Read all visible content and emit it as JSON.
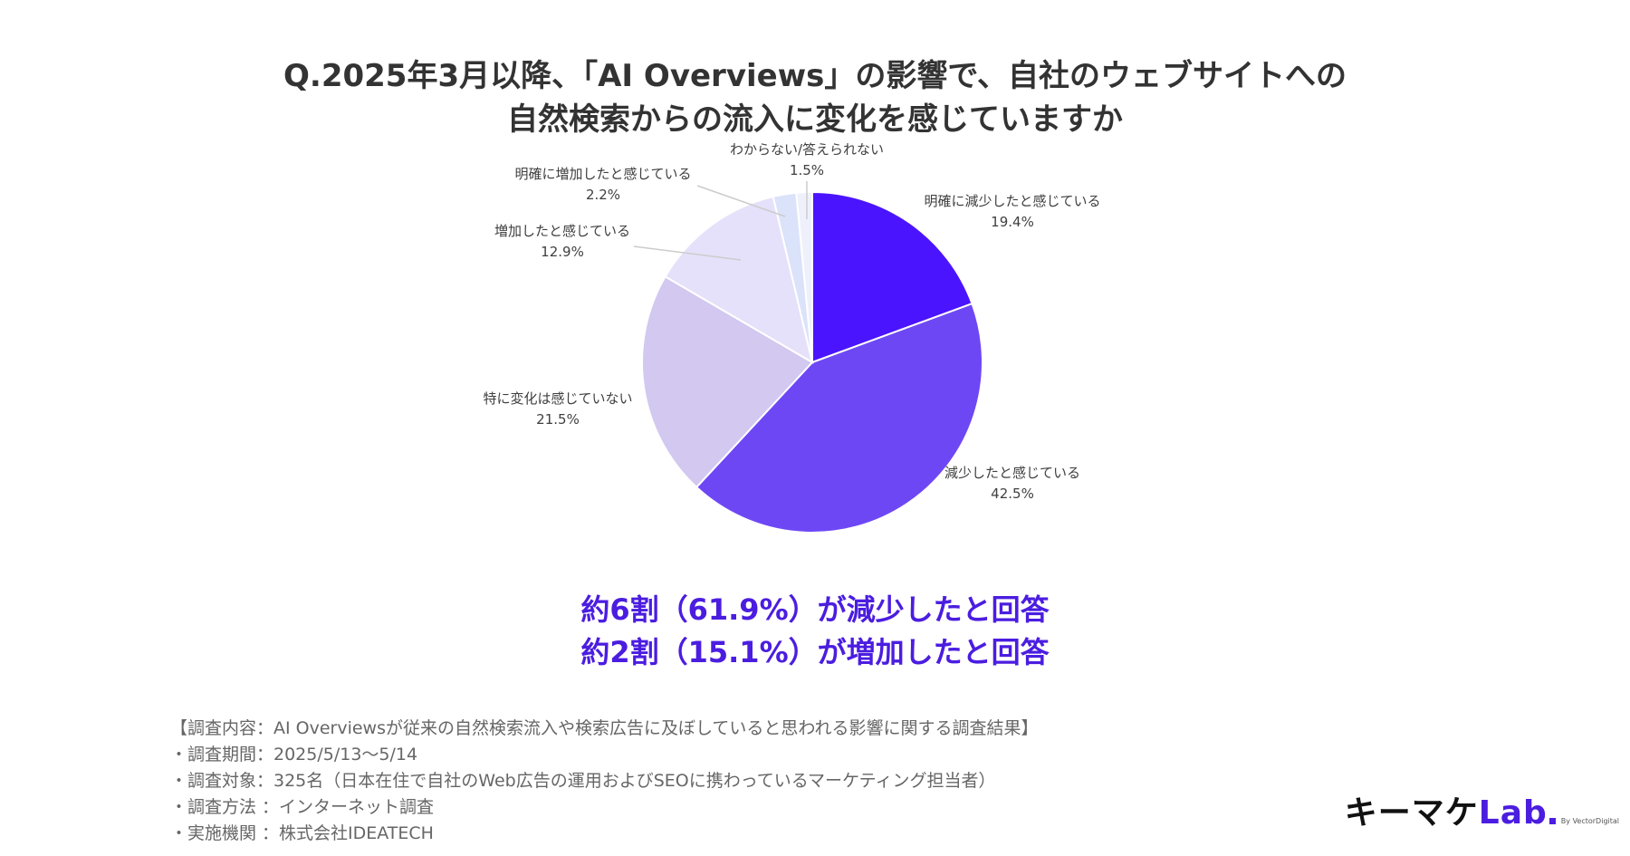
{
  "title": {
    "line1": "Q.2025年3月以降、「AI Overviews」の影響で、自社のウェブサイトへの",
    "line2": "自然検索からの流入に変化を感じていますか"
  },
  "chart_data": {
    "type": "pie",
    "slices": [
      {
        "label": "明確に減少したと感じている",
        "value": 19.4,
        "value_label": "19.4%",
        "color": "#4b14ff"
      },
      {
        "label": "減少したと感じている",
        "value": 42.5,
        "value_label": "42.5%",
        "color": "#6e47f5"
      },
      {
        "label": "特に変化は感じていない",
        "value": 21.5,
        "value_label": "21.5%",
        "color": "#d2c8f0"
      },
      {
        "label": "増加したと感じている",
        "value": 12.9,
        "value_label": "12.9%",
        "color": "#e6e1fa"
      },
      {
        "label": "明確に増加したと感じている",
        "value": 2.2,
        "value_label": "2.2%",
        "color": "#dbe3fa"
      },
      {
        "label": "わからない/答えられない",
        "value": 1.5,
        "value_label": "1.5%",
        "color": "#eef1fb"
      }
    ],
    "start_angle": "12 o'clock",
    "direction": "clockwise",
    "legend": "none (labels outside slices)"
  },
  "summary": {
    "line1": "約6割（61.9%）が減少したと回答",
    "line2": "約2割（15.1%）が増加したと回答"
  },
  "footnotes": [
    "【調査内容：AI Overviewsが従来の自然検索流入や検索広告に及ぼしていると思われる影響に関する調査結果】",
    "・調査期間：2025/5/13〜5/14",
    "・調査対象：325名（日本在住で自社のWeb広告の運用およびSEOに携わっているマーケティング担当者）",
    "・調査方法 ：インターネット調査",
    "・実施機関 ：株式会社IDEATECH"
  ],
  "logo": {
    "main_prefix": "キーマケ",
    "main_suffix": "Lab",
    "by": "By VectorDigital"
  },
  "colors": {
    "accent": "#4b1de0",
    "title_text": "#333333",
    "footnote_text": "#666666"
  }
}
